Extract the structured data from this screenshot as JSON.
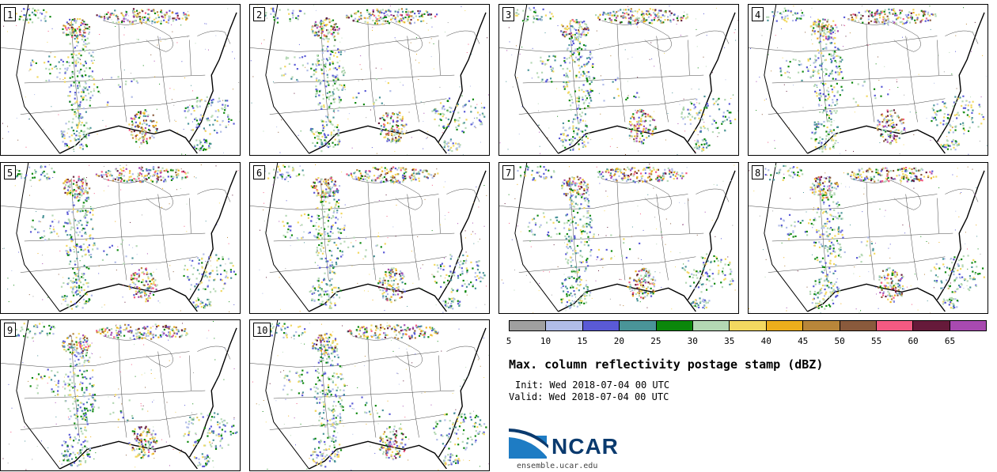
{
  "panels": [
    {
      "label": "1"
    },
    {
      "label": "2"
    },
    {
      "label": "3"
    },
    {
      "label": "4"
    },
    {
      "label": "5"
    },
    {
      "label": "6"
    },
    {
      "label": "7"
    },
    {
      "label": "8"
    },
    {
      "label": "9"
    },
    {
      "label": "10"
    }
  ],
  "colorbar": {
    "ticks": [
      "5",
      "10",
      "15",
      "20",
      "25",
      "30",
      "35",
      "40",
      "45",
      "50",
      "55",
      "60",
      "65"
    ],
    "colors": [
      "#a0a0a0",
      "#b0bce8",
      "#5a5ad6",
      "#4a9498",
      "#0b870b",
      "#b4d8b4",
      "#f2d860",
      "#ecae1c",
      "#b8863a",
      "#8a5a3c",
      "#f45a82",
      "#661a3a",
      "#a84ab0"
    ]
  },
  "title": "Max. column reflectivity postage stamp (dBZ)",
  "init_line": "Init: Wed 2018-07-04 00 UTC",
  "valid_line": "Valid: Wed 2018-07-04 00 UTC",
  "logo": {
    "text": "NCAR",
    "url": "ensemble.ucar.edu",
    "color": "#0a3a6e",
    "accent": "#1e7cc4"
  }
}
